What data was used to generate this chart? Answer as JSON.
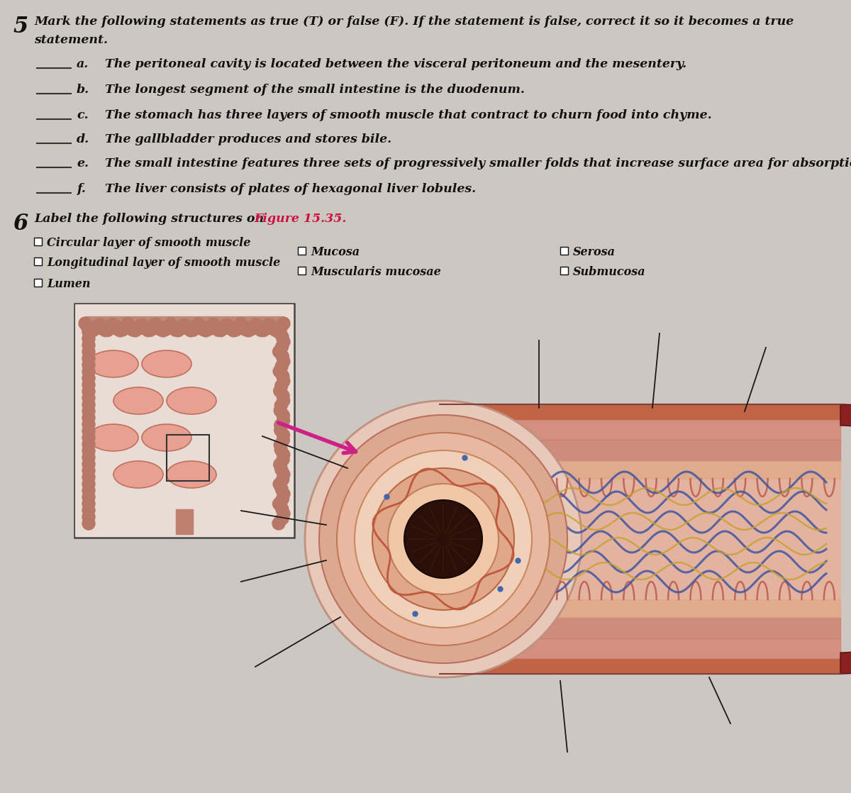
{
  "background_color": "#cdc7c2",
  "title_number": "5",
  "title_line1": "Mark the following statements as true (T) or false (F). If the statement is false, correct it so it becomes a true",
  "title_line2": "statement.",
  "statements": [
    [
      "a.",
      "The peritoneal cavity is located between the visceral peritoneum and the mesentery."
    ],
    [
      "b.",
      "The longest segment of the small intestine is the duodenum."
    ],
    [
      "c.",
      "The stomach has three layers of smooth muscle that contract to churn food into chyme."
    ],
    [
      "d.",
      "The gallbladder produces and stores bile."
    ],
    [
      "e.",
      "The small intestine features three sets of progressively smaller folds that increase surface area for absorption."
    ],
    [
      "f.",
      "The liver consists of plates of hexagonal liver lobules."
    ]
  ],
  "section6_number": "6",
  "section6_prefix": "Label the following structures on ",
  "section6_ref": "Figure 15.35.",
  "labels_col1": [
    "Circular layer of smooth muscle",
    "Longitudinal layer of smooth muscle",
    "Lumen"
  ],
  "labels_col2": [
    "Mucosa",
    "Muscularis mucosae"
  ],
  "labels_col3": [
    "Serosa",
    "Submucosa"
  ],
  "figure_ref_color": "#cc1144",
  "text_color": "#111111",
  "blank_color": "#333333"
}
